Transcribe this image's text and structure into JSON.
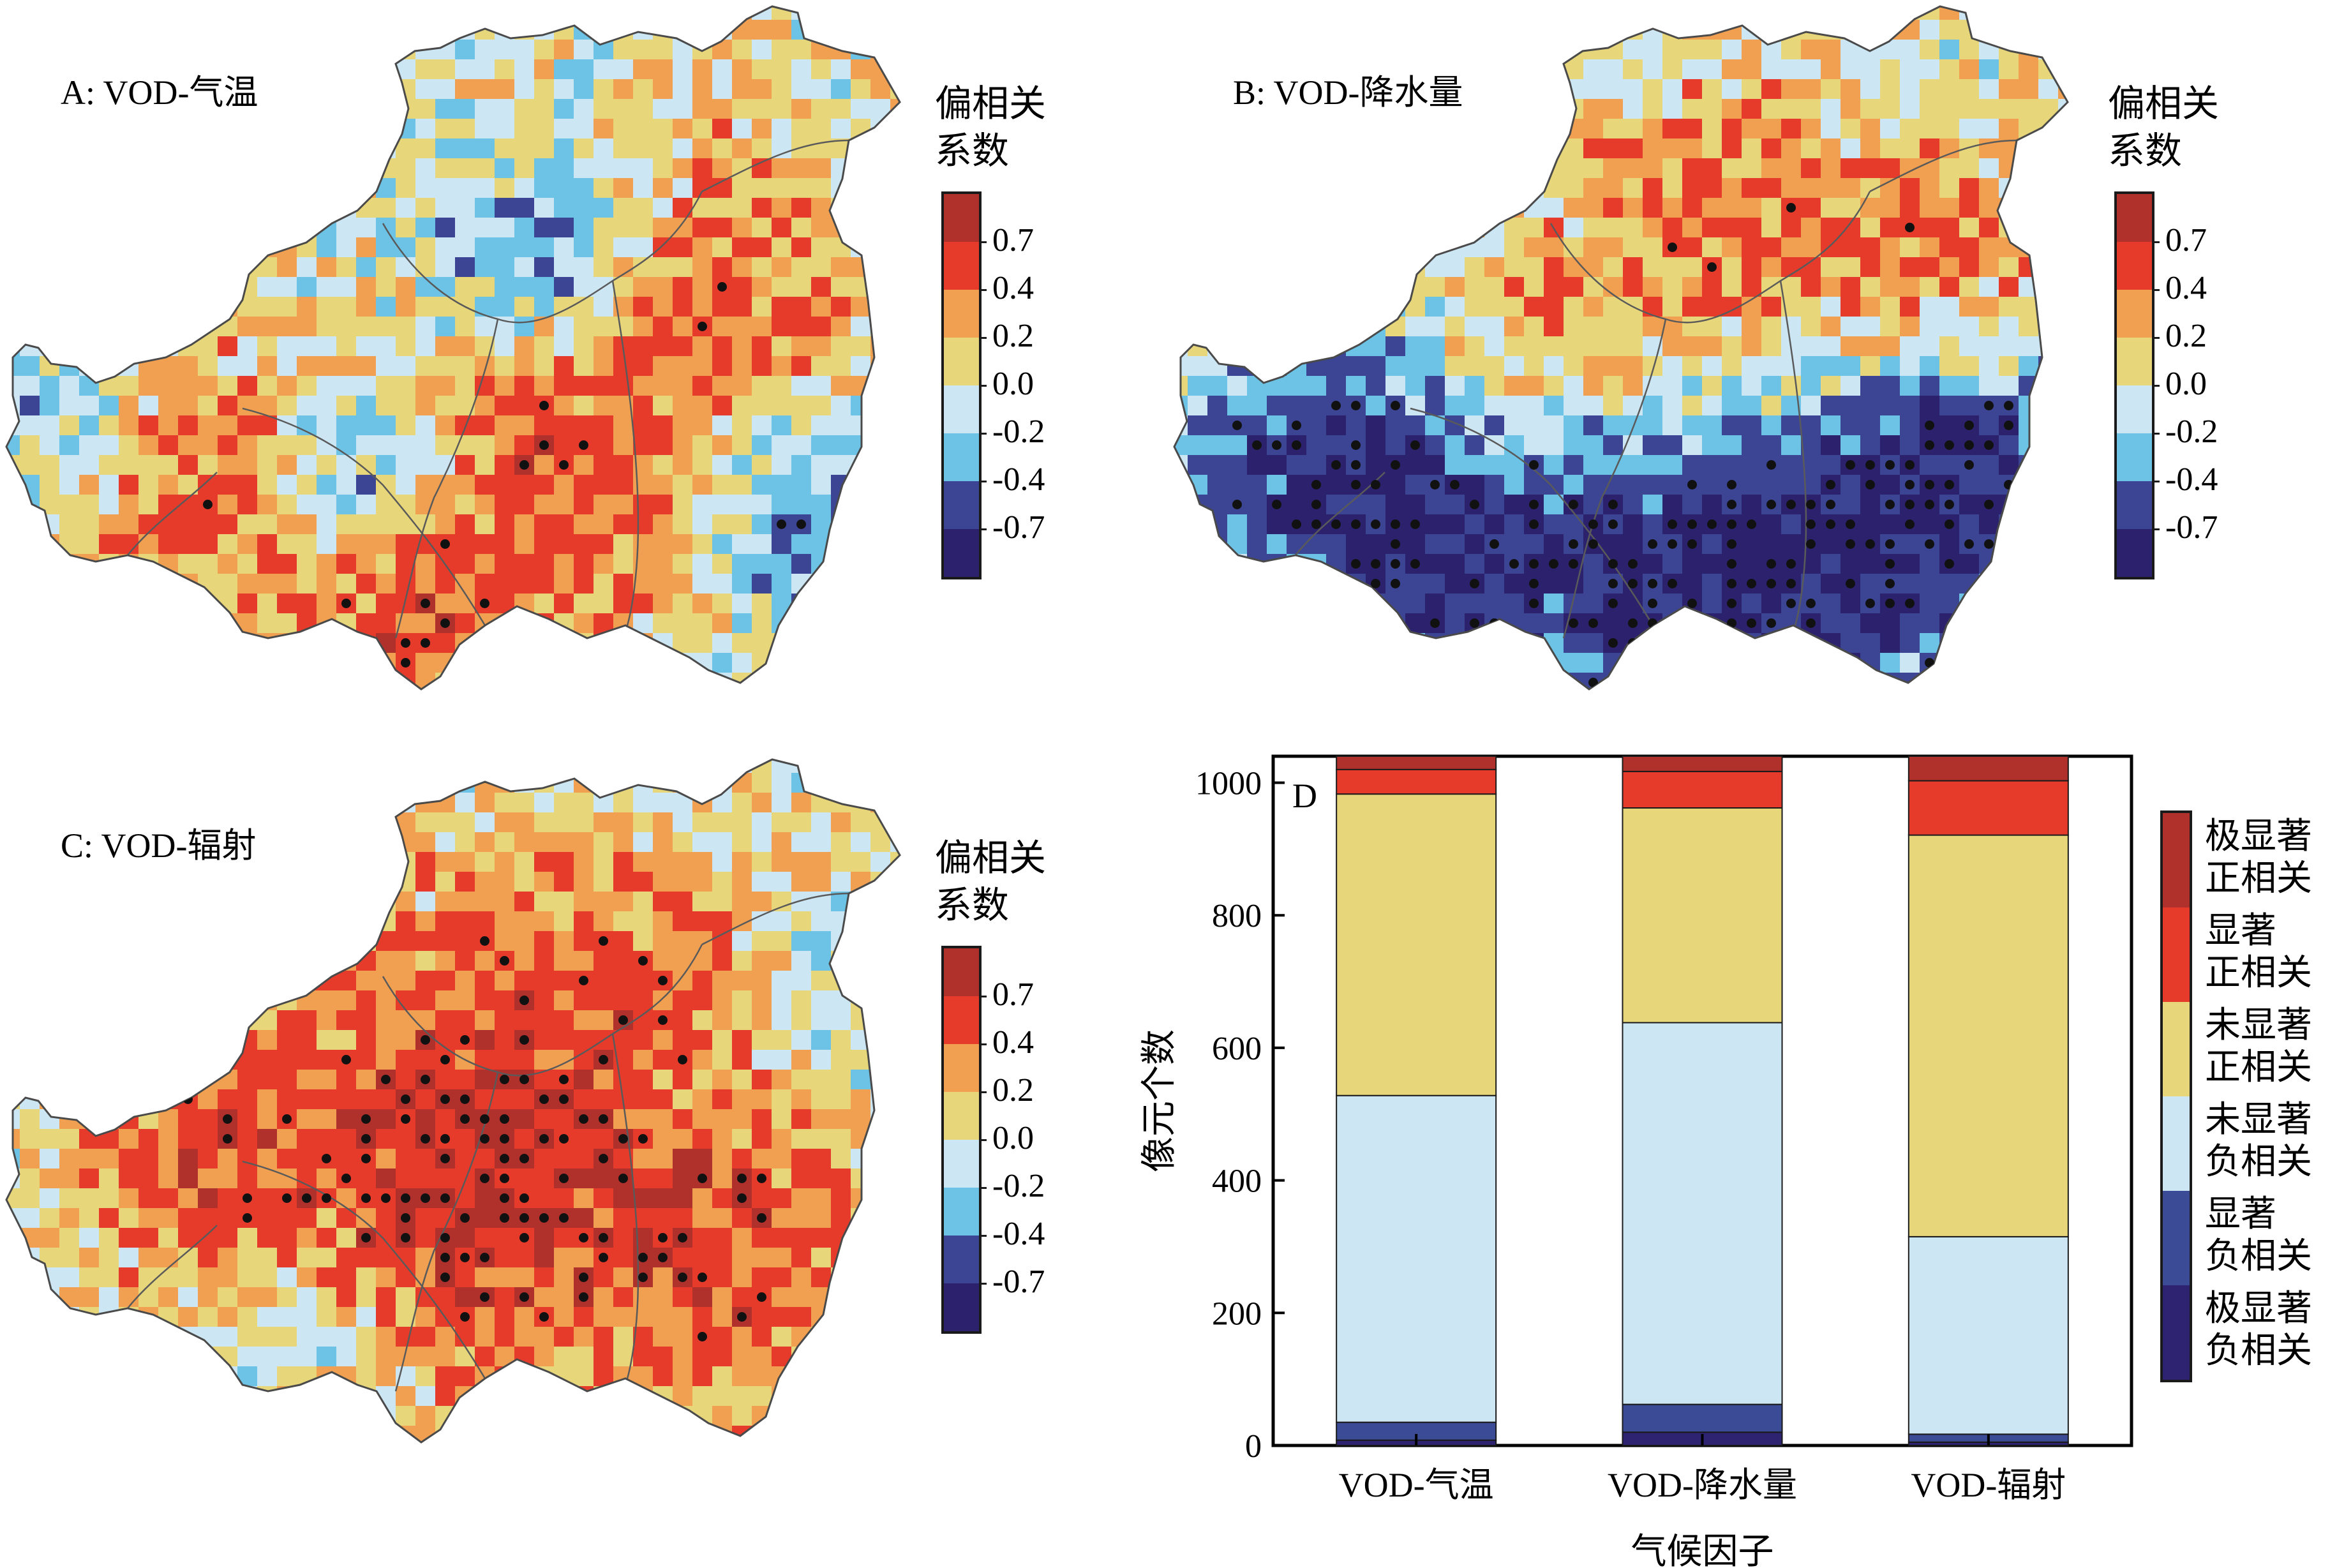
{
  "colorbar": {
    "title_line1": "偏相关",
    "title_line2": "系数",
    "ticks": [
      "0.7",
      "0.4",
      "0.2",
      "0.0",
      "-0.2",
      "-0.4",
      "-0.7"
    ],
    "colors": [
      "#b0302c",
      "#e63b2b",
      "#f0a050",
      "#e8d77a",
      "#cce6f4",
      "#6cc3e6",
      "#3b4594",
      "#2c216d"
    ]
  },
  "maps": [
    {
      "id": "A",
      "title": "A: VOD-气温"
    },
    {
      "id": "B",
      "title": "B: VOD-降水量"
    },
    {
      "id": "C",
      "title": "C: VOD-辐射"
    }
  ],
  "chart_data": {
    "type": "bar",
    "stacked": true,
    "panel_label": "D",
    "xlabel": "气候因子",
    "ylabel": "像元个数",
    "ylim": [
      0,
      1040
    ],
    "yticks": [
      0,
      200,
      400,
      600,
      800,
      1000
    ],
    "categories": [
      "VOD-气温",
      "VOD-降水量",
      "VOD-辐射"
    ],
    "series": [
      {
        "name": "极显著负相关",
        "color": "#2e2370",
        "values": [
          8,
          20,
          5
        ]
      },
      {
        "name": "显著负相关",
        "color": "#3b4b96",
        "values": [
          27,
          42,
          12
        ]
      },
      {
        "name": "未显著负相关",
        "color": "#cde6f4",
        "values": [
          493,
          576,
          298
        ]
      },
      {
        "name": "未显著正相关",
        "color": "#e8d77a",
        "values": [
          455,
          324,
          606
        ]
      },
      {
        "name": "显著正相关",
        "color": "#e63b2b",
        "values": [
          37,
          55,
          82
        ]
      },
      {
        "name": "极显著正相关",
        "color": "#b0302c",
        "values": [
          20,
          23,
          37
        ]
      }
    ],
    "legend": [
      [
        "极显著",
        "正相关"
      ],
      [
        "显著",
        "正相关"
      ],
      [
        "未显著",
        "正相关"
      ],
      [
        "未显著",
        "负相关"
      ],
      [
        "显著",
        "负相关"
      ],
      [
        "极显著",
        "负相关"
      ]
    ],
    "legend_colors": [
      "#b0302c",
      "#e63b2b",
      "#e8d77a",
      "#cde6f4",
      "#3b4b96",
      "#2e2370"
    ],
    "legend_position": "right"
  }
}
